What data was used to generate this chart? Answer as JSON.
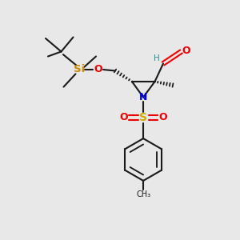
{
  "bg_color": "#e8e8e8",
  "bond_color": "#1a1a1a",
  "N_color": "#0000ee",
  "O_color": "#ee0000",
  "S_color": "#ccaa00",
  "Si_color": "#cc8800",
  "H_color": "#2a9090",
  "figsize": [
    3.0,
    3.0
  ],
  "dpi": 100,
  "xlim": [
    0,
    10
  ],
  "ylim": [
    0,
    10
  ]
}
